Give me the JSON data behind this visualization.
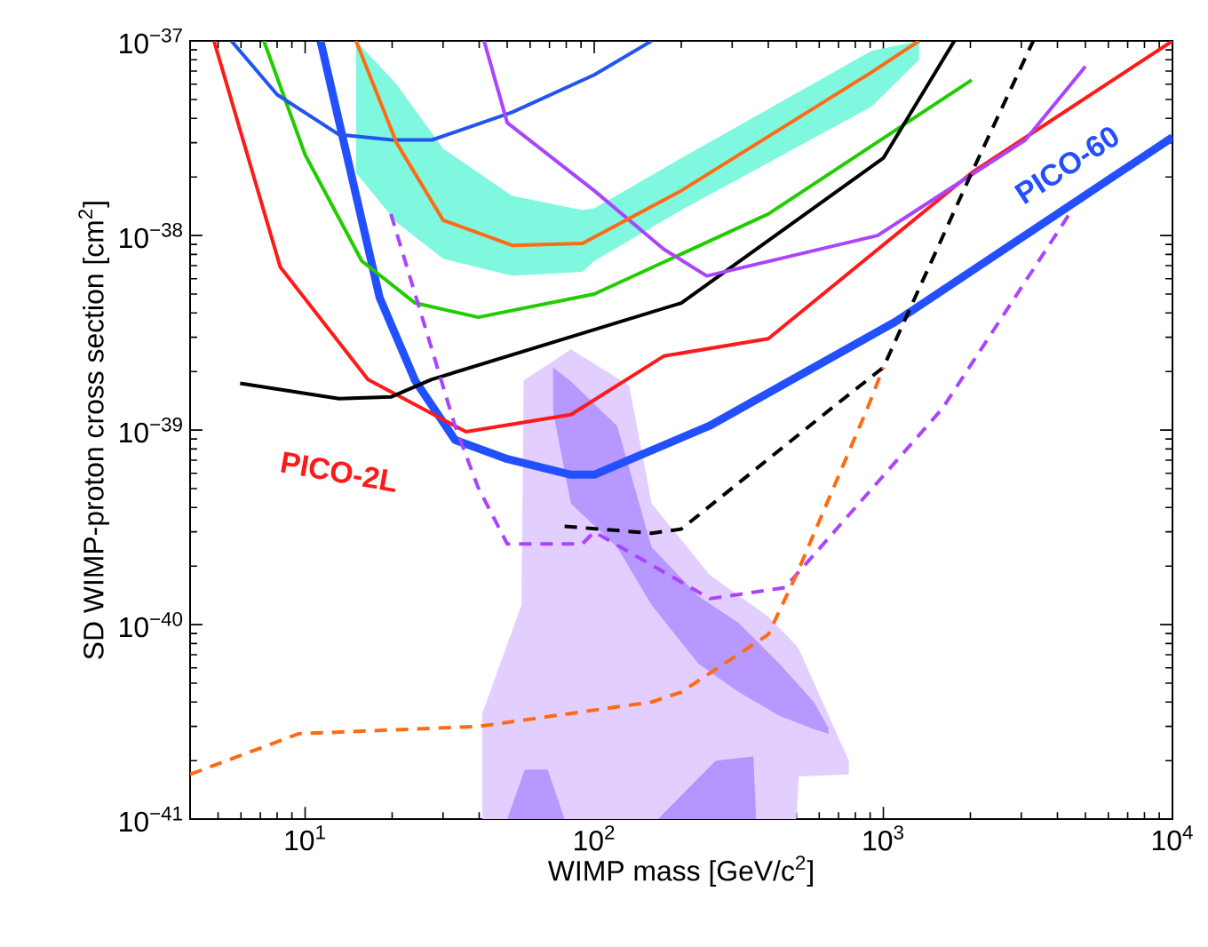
{
  "chart_data": {
    "type": "line",
    "xlabel": "WIMP mass [GeV/c$^{2}$]",
    "ylabel": "SD WIMP-proton cross section [cm$^{2}$]",
    "log": "xy",
    "xlim": [
      4,
      10000
    ],
    "ylim": [
      1e-41,
      1e-37
    ],
    "xticks": [
      {
        "value": 10,
        "label": "10$^{1}$"
      },
      {
        "value": 100,
        "label": "10$^{2}$"
      },
      {
        "value": 1000,
        "label": "10$^{3}$"
      },
      {
        "value": 10000,
        "label": "10$^{4}$"
      }
    ],
    "yticks": [
      {
        "value": 1e-41,
        "label": "10$^{−41}$"
      },
      {
        "value": 1e-40,
        "label": "10$^{−40}$"
      },
      {
        "value": 1e-39,
        "label": "10$^{−39}$"
      },
      {
        "value": 1e-38,
        "label": "10$^{−38}$"
      },
      {
        "value": 1e-37,
        "label": "10$^{−37}$"
      }
    ],
    "series": [
      {
        "type": "area",
        "color": "#e2cfff",
        "x": [
          41,
          56,
          57,
          83,
          132,
          158,
          251,
          400,
          500,
          510,
          760,
          760,
          510,
          500,
          41
        ],
        "values": [
          3.5e-41,
          1.26e-40,
          1.8e-39,
          2.6e-39,
          1.7e-39,
          4.2e-40,
          1.8e-40,
          1.1e-40,
          7.8e-41,
          7.5e-41,
          2e-41,
          1.7e-41,
          1.66e-41,
          1e-41,
          1e-41
        ]
      },
      {
        "type": "area",
        "color": "#b698ff",
        "x": [
          72,
          83,
          120,
          158,
          229,
          316,
          437,
          575,
          646,
          646,
          575,
          437,
          316,
          229,
          158,
          120,
          83,
          72
        ],
        "values": [
          2.1e-39,
          1.78e-39,
          1.05e-39,
          2.5e-40,
          1.4e-40,
          1.02e-40,
          6.3e-41,
          4e-41,
          2.95e-41,
          2.75e-41,
          2.9e-41,
          3.4e-41,
          4.5e-41,
          6.3e-41,
          1.26e-40,
          2.5e-40,
          4.2e-40,
          1.26e-39
        ]
      },
      {
        "type": "area",
        "color": "#b698ff",
        "x": [
          50,
          57.5,
          69,
          79
        ],
        "values": [
          1e-41,
          1.8e-41,
          1.8e-41,
          1e-41
        ]
      },
      {
        "type": "area",
        "color": "#b395ff",
        "x": [
          166,
          263,
          355,
          363
        ],
        "values": [
          1e-41,
          2e-41,
          2.1e-41,
          1e-41
        ]
      },
      {
        "type": "area",
        "color": "#7ff8df",
        "x": [
          15,
          20.7,
          30,
          52,
          91,
          100,
          200,
          910,
          1330,
          1330,
          910,
          200,
          100,
          91,
          52,
          30,
          20.7,
          15
        ],
        "values": [
          1e-37,
          6e-38,
          2.8e-38,
          1.6e-38,
          1.35e-38,
          1.38e-38,
          2.5e-38,
          8.9e-38,
          1e-37,
          8e-38,
          4.6e-38,
          1.35e-38,
          7.4e-39,
          6.5e-39,
          6.2e-39,
          7.6e-39,
          1.17e-38,
          2.1e-38
        ]
      },
      {
        "name": "PICO-60",
        "color": "#2350ff",
        "x": [
          11.3,
          18.1,
          24,
          33,
          50,
          83,
          100,
          250,
          1100,
          10000
        ],
        "values": [
          1e-37,
          4.8e-39,
          1.8e-39,
          8.9e-40,
          7.1e-40,
          5.9e-40,
          5.9e-40,
          1.05e-39,
          3.6e-39,
          3.2e-38
        ]
      },
      {
        "name": "PICO-2L",
        "color": "#ff1a1a",
        "x": [
          4.84,
          8.2,
          16.5,
          36,
          83,
          174,
          400,
          2020,
          10000
        ],
        "values": [
          1e-37,
          6.9e-39,
          1.82e-39,
          9.8e-40,
          1.2e-39,
          2.4e-39,
          2.95e-39,
          2.1e-38,
          1e-37
        ]
      },
      {
        "color": "#22cc00",
        "x": [
          7.2,
          10,
          15.7,
          24,
          39.7,
          100,
          400,
          2020
        ],
        "values": [
          1e-37,
          2.6e-38,
          7.4e-39,
          4.5e-39,
          3.8e-39,
          5e-39,
          1.29e-38,
          6.3e-38
        ]
      },
      {
        "color": "#000000",
        "x": [
          5.96,
          13.1,
          19.8,
          27.4,
          200,
          1000,
          1760
        ],
        "values": [
          1.74e-39,
          1.45e-39,
          1.48e-39,
          1.82e-39,
          4.5e-39,
          2.5e-38,
          1e-37
        ]
      },
      {
        "color": "#2255ee",
        "x": [
          5.56,
          8,
          13.1,
          20,
          27.5,
          52,
          100,
          158
        ],
        "values": [
          1e-37,
          5.3e-38,
          3.3e-38,
          3.1e-38,
          3.1e-38,
          4.3e-38,
          6.7e-38,
          1e-37
        ]
      },
      {
        "color": "#aa44ff",
        "x": [
          41.6,
          50,
          100,
          174,
          245,
          955,
          3100,
          5000
        ],
        "values": [
          1e-37,
          3.8e-38,
          1.7e-38,
          8.5e-39,
          6.2e-39,
          1e-38,
          3.1e-38,
          7.4e-38
        ]
      },
      {
        "color": "#ff6a13",
        "x": [
          15,
          20.7,
          30,
          52,
          91,
          200,
          910,
          1330
        ],
        "values": [
          1e-37,
          3e-38,
          1.2e-38,
          8.9e-39,
          9.1e-39,
          1.7e-38,
          6.9e-38,
          1e-37
        ]
      },
      {
        "color": "#aa44ff",
        "line_style": "dashed",
        "x": [
          19.8,
          33,
          39.6,
          50,
          91,
          100,
          251,
          457,
          1600,
          4400
        ],
        "values": [
          1.29e-38,
          1.05e-39,
          5.1e-40,
          2.6e-40,
          2.6e-40,
          3e-40,
          1.36e-40,
          1.55e-40,
          1.29e-39,
          1.29e-38
        ]
      },
      {
        "color": "#000000",
        "line_style": "dashed",
        "x": [
          79,
          158,
          200,
          660,
          1000,
          2020,
          3300
        ],
        "values": [
          3.2e-40,
          2.95e-40,
          3.1e-40,
          1.29e-39,
          2.1e-39,
          2.1e-38,
          1e-37
        ]
      },
      {
        "color": "#ff6a13",
        "line_style": "dashed",
        "x": [
          4,
          9.5,
          40,
          158,
          200,
          400,
          500,
          880,
          1000
        ],
        "values": [
          1.7e-41,
          2.75e-41,
          3e-41,
          4e-41,
          4.5e-41,
          8.9e-41,
          1.8e-40,
          1.29e-39,
          2.1e-39
        ]
      }
    ]
  }
}
